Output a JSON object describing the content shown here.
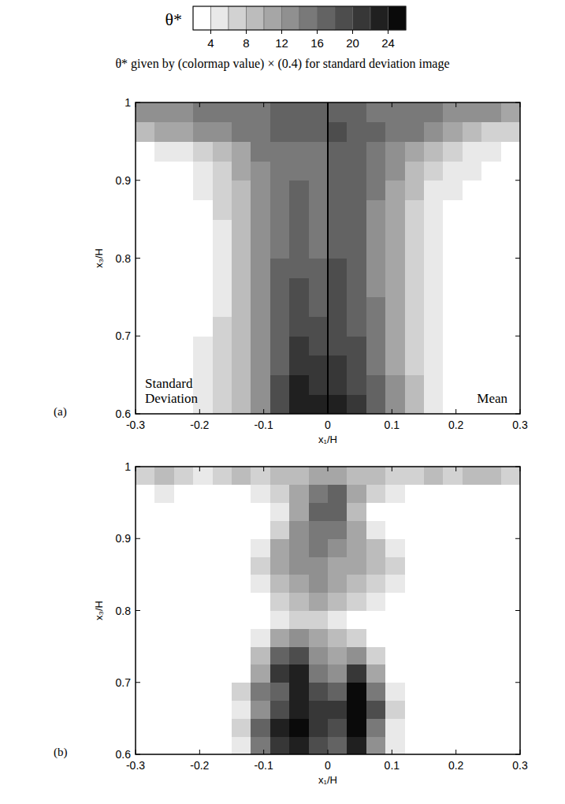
{
  "chart_data": [
    {
      "type": "heatmap",
      "panel_label": "(a)",
      "colorbar": {
        "title": "θ*",
        "caption": "θ* given by (colormap value) × (0.4) for standard deviation image",
        "range": [
          2,
          26
        ],
        "ticks": [
          4,
          8,
          12,
          16,
          20,
          24
        ],
        "levels": [
          2,
          4,
          6,
          8,
          10,
          12,
          14,
          16,
          18,
          20,
          22,
          24,
          26
        ]
      },
      "x_label": "x₁/H",
      "y_label": "x₃/H",
      "xlim": [
        -0.3,
        0.3
      ],
      "ylim": [
        0.6,
        1
      ],
      "xticks": [
        -0.3,
        -0.2,
        -0.1,
        0,
        0.1,
        0.2,
        0.3
      ],
      "yticks": [
        0.6,
        0.7,
        0.8,
        0.9,
        1
      ],
      "divider_x": 0,
      "annotations": [
        "Standard Deviation",
        "Mean"
      ],
      "x_edges": [
        -0.3,
        -0.27,
        -0.24,
        -0.21,
        -0.18,
        -0.15,
        -0.12,
        -0.09,
        -0.06,
        -0.03,
        0,
        0.03,
        0.06,
        0.09,
        0.12,
        0.15,
        0.18,
        0.21,
        0.24,
        0.27,
        0.3
      ],
      "y_edges": [
        0.6,
        0.625,
        0.65,
        0.675,
        0.7,
        0.725,
        0.75,
        0.775,
        0.8,
        0.825,
        0.85,
        0.875,
        0.9,
        0.925,
        0.95,
        0.975,
        1
      ],
      "cells": [
        [
          2,
          2,
          3,
          4,
          6,
          9,
          13,
          18,
          23,
          22,
          22,
          20,
          16,
          12,
          8,
          5,
          3,
          2,
          2,
          2
        ],
        [
          2,
          2,
          3,
          4,
          6,
          9,
          13,
          18,
          22,
          21,
          21,
          19,
          16,
          12,
          8,
          5,
          3,
          2,
          2,
          2
        ],
        [
          2,
          2,
          3,
          4,
          6,
          9,
          13,
          17,
          21,
          20,
          20,
          18,
          15,
          11,
          7,
          4,
          3,
          2,
          2,
          2
        ],
        [
          2,
          2,
          2,
          4,
          6,
          9,
          13,
          17,
          20,
          19,
          19,
          18,
          14,
          11,
          7,
          4,
          2,
          2,
          2,
          2
        ],
        [
          2,
          2,
          2,
          3,
          6,
          9,
          13,
          16,
          19,
          18,
          18,
          17,
          14,
          10,
          7,
          4,
          2,
          2,
          2,
          2
        ],
        [
          2,
          2,
          2,
          3,
          5,
          9,
          13,
          16,
          18,
          17,
          18,
          17,
          14,
          10,
          6,
          4,
          2,
          2,
          2,
          2
        ],
        [
          2,
          2,
          2,
          3,
          5,
          8,
          13,
          16,
          18,
          16,
          18,
          17,
          13,
          10,
          6,
          4,
          2,
          2,
          2,
          2
        ],
        [
          2,
          2,
          2,
          3,
          5,
          8,
          13,
          16,
          17,
          16,
          18,
          16,
          13,
          10,
          6,
          4,
          2,
          2,
          2,
          2
        ],
        [
          2,
          2,
          2,
          3,
          5,
          8,
          12,
          15,
          16,
          15,
          17,
          16,
          13,
          10,
          6,
          4,
          3,
          2,
          2,
          2
        ],
        [
          2,
          2,
          2,
          3,
          5,
          8,
          12,
          15,
          16,
          15,
          17,
          16,
          13,
          10,
          7,
          4,
          3,
          2,
          2,
          2
        ],
        [
          2,
          2,
          2,
          3,
          6,
          9,
          13,
          15,
          16,
          15,
          17,
          16,
          13,
          10,
          7,
          5,
          3,
          2,
          2,
          2
        ],
        [
          2,
          2,
          3,
          4,
          6,
          9,
          13,
          15,
          16,
          15,
          17,
          16,
          14,
          11,
          8,
          5,
          4,
          3,
          2,
          2
        ],
        [
          2,
          3,
          3,
          5,
          7,
          10,
          13,
          15,
          15,
          15,
          17,
          16,
          14,
          12,
          9,
          7,
          5,
          4,
          3,
          2
        ],
        [
          3,
          4,
          5,
          7,
          9,
          11,
          14,
          15,
          15,
          15,
          17,
          16,
          15,
          13,
          11,
          9,
          7,
          5,
          4,
          3
        ],
        [
          8,
          10,
          11,
          12,
          13,
          14,
          15,
          16,
          16,
          16,
          18,
          17,
          16,
          15,
          14,
          12,
          11,
          9,
          7,
          6
        ],
        [
          12,
          13,
          13,
          14,
          14,
          15,
          15,
          16,
          16,
          16,
          16,
          16,
          15,
          15,
          14,
          14,
          13,
          13,
          12,
          11
        ]
      ]
    },
    {
      "type": "heatmap",
      "panel_label": "(b)",
      "x_label": "x₁/H",
      "y_label": "x₃/H",
      "xlim": [
        -0.3,
        0.3
      ],
      "ylim": [
        0.6,
        1
      ],
      "xticks": [
        -0.3,
        -0.2,
        -0.1,
        0,
        0.1,
        0.2,
        0.3
      ],
      "yticks": [
        0.6,
        0.7,
        0.8,
        0.9,
        1
      ],
      "x_edges": [
        -0.3,
        -0.27,
        -0.24,
        -0.21,
        -0.18,
        -0.15,
        -0.12,
        -0.09,
        -0.06,
        -0.03,
        0,
        0.03,
        0.06,
        0.09,
        0.12,
        0.15,
        0.18,
        0.21,
        0.24,
        0.27,
        0.3
      ],
      "y_edges": [
        0.6,
        0.625,
        0.65,
        0.675,
        0.7,
        0.725,
        0.75,
        0.775,
        0.8,
        0.825,
        0.85,
        0.875,
        0.9,
        0.925,
        0.95,
        0.975,
        1
      ],
      "cells": [
        [
          0,
          0,
          0,
          0,
          0,
          4,
          14,
          20,
          22,
          18,
          16,
          22,
          12,
          4,
          0,
          0,
          0,
          0,
          0,
          0
        ],
        [
          0,
          0,
          0,
          0,
          0,
          6,
          16,
          22,
          24,
          20,
          18,
          24,
          14,
          4,
          0,
          0,
          0,
          0,
          0,
          0
        ],
        [
          0,
          0,
          0,
          0,
          0,
          4,
          12,
          18,
          22,
          20,
          20,
          24,
          18,
          6,
          0,
          0,
          0,
          0,
          0,
          0
        ],
        [
          0,
          0,
          0,
          0,
          0,
          6,
          14,
          16,
          22,
          18,
          16,
          24,
          14,
          4,
          0,
          0,
          0,
          0,
          0,
          0
        ],
        [
          0,
          0,
          0,
          0,
          0,
          2,
          10,
          20,
          22,
          14,
          12,
          20,
          10,
          2,
          0,
          0,
          0,
          0,
          0,
          0
        ],
        [
          0,
          0,
          0,
          0,
          0,
          0,
          8,
          16,
          18,
          12,
          10,
          12,
          6,
          0,
          0,
          0,
          0,
          0,
          0,
          0
        ],
        [
          0,
          0,
          0,
          0,
          0,
          0,
          4,
          10,
          12,
          10,
          8,
          6,
          2,
          0,
          0,
          0,
          0,
          0,
          0,
          0
        ],
        [
          0,
          0,
          0,
          0,
          0,
          0,
          2,
          4,
          6,
          6,
          4,
          2,
          0,
          0,
          0,
          0,
          0,
          0,
          0,
          0
        ],
        [
          0,
          0,
          0,
          0,
          0,
          0,
          2,
          6,
          8,
          10,
          8,
          6,
          4,
          0,
          0,
          0,
          0,
          0,
          0,
          0
        ],
        [
          0,
          0,
          0,
          0,
          0,
          0,
          4,
          8,
          10,
          12,
          10,
          8,
          6,
          4,
          0,
          0,
          0,
          0,
          0,
          0
        ],
        [
          0,
          0,
          0,
          0,
          0,
          0,
          6,
          10,
          12,
          12,
          10,
          10,
          8,
          6,
          2,
          0,
          0,
          0,
          0,
          0
        ],
        [
          0,
          0,
          0,
          0,
          0,
          0,
          4,
          10,
          12,
          14,
          12,
          10,
          8,
          4,
          0,
          0,
          0,
          0,
          0,
          0
        ],
        [
          0,
          0,
          0,
          0,
          0,
          0,
          0,
          6,
          12,
          14,
          14,
          10,
          4,
          0,
          0,
          0,
          0,
          0,
          0,
          0
        ],
        [
          0,
          0,
          0,
          0,
          0,
          0,
          0,
          4,
          10,
          16,
          16,
          8,
          2,
          0,
          0,
          0,
          0,
          0,
          0,
          0
        ],
        [
          0,
          4,
          2,
          0,
          0,
          2,
          4,
          6,
          10,
          14,
          16,
          10,
          6,
          4,
          2,
          0,
          0,
          0,
          0,
          0
        ],
        [
          6,
          8,
          6,
          4,
          6,
          8,
          6,
          8,
          8,
          10,
          10,
          8,
          8,
          6,
          6,
          8,
          6,
          8,
          8,
          6
        ]
      ]
    }
  ]
}
